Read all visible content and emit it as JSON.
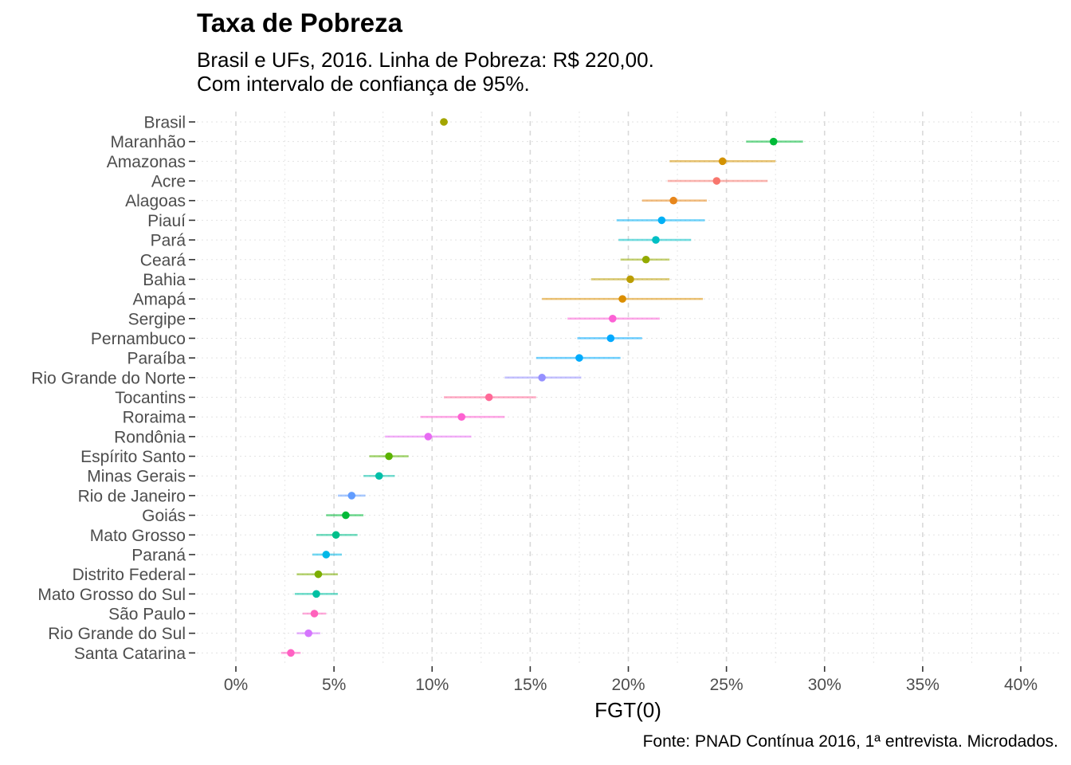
{
  "chart_data": {
    "type": "scatter",
    "title": "Taxa de Pobreza",
    "subtitle": [
      "Brasil e UFs, 2016. Linha de Pobreza: R$ 220,00.",
      "Com intervalo de confiança de 95%."
    ],
    "xlabel": "FGT(0)",
    "ylabel": "",
    "caption": "Fonte: PNAD Contínua 2016, 1ª entrevista. Microdados.",
    "xlim": [
      -0.02,
      0.42
    ],
    "x_ticks": [
      0,
      0.05,
      0.1,
      0.15,
      0.2,
      0.25,
      0.3,
      0.35,
      0.4
    ],
    "x_tick_labels": [
      "0%",
      "5%",
      "10%",
      "15%",
      "20%",
      "25%",
      "30%",
      "35%",
      "40%"
    ],
    "grid": true,
    "legend": "none",
    "points": [
      {
        "label": "Brasil",
        "value": 0.106,
        "low": 0.104,
        "high": 0.108,
        "color": "#a3a500"
      },
      {
        "label": "Maranhão",
        "value": 0.274,
        "low": 0.26,
        "high": 0.289,
        "color": "#00ba38"
      },
      {
        "label": "Amazonas",
        "value": 0.248,
        "low": 0.221,
        "high": 0.275,
        "color": "#d39200"
      },
      {
        "label": "Acre",
        "value": 0.245,
        "low": 0.22,
        "high": 0.271,
        "color": "#f8766d"
      },
      {
        "label": "Alagoas",
        "value": 0.223,
        "low": 0.207,
        "high": 0.24,
        "color": "#e7861b"
      },
      {
        "label": "Piauí",
        "value": 0.217,
        "low": 0.194,
        "high": 0.239,
        "color": "#00b0f6"
      },
      {
        "label": "Pará",
        "value": 0.214,
        "low": 0.195,
        "high": 0.232,
        "color": "#00bfc4"
      },
      {
        "label": "Ceará",
        "value": 0.209,
        "low": 0.196,
        "high": 0.221,
        "color": "#93aa00"
      },
      {
        "label": "Bahia",
        "value": 0.201,
        "low": 0.181,
        "high": 0.221,
        "color": "#bb9d00"
      },
      {
        "label": "Amapá",
        "value": 0.197,
        "low": 0.156,
        "high": 0.238,
        "color": "#db8e00"
      },
      {
        "label": "Sergipe",
        "value": 0.192,
        "low": 0.169,
        "high": 0.216,
        "color": "#fc61d5"
      },
      {
        "label": "Pernambuco",
        "value": 0.191,
        "low": 0.174,
        "high": 0.207,
        "color": "#00a9ff"
      },
      {
        "label": "Paraíba",
        "value": 0.175,
        "low": 0.153,
        "high": 0.196,
        "color": "#00abfd"
      },
      {
        "label": "Rio Grande do Norte",
        "value": 0.156,
        "low": 0.137,
        "high": 0.176,
        "color": "#9590ff"
      },
      {
        "label": "Tocantins",
        "value": 0.129,
        "low": 0.106,
        "high": 0.153,
        "color": "#ff6a98"
      },
      {
        "label": "Roraima",
        "value": 0.115,
        "low": 0.094,
        "high": 0.137,
        "color": "#fd61d1"
      },
      {
        "label": "Rondônia",
        "value": 0.098,
        "low": 0.076,
        "high": 0.12,
        "color": "#e76bf3"
      },
      {
        "label": "Espírito Santo",
        "value": 0.078,
        "low": 0.068,
        "high": 0.088,
        "color": "#5bb300"
      },
      {
        "label": "Minas Gerais",
        "value": 0.073,
        "low": 0.065,
        "high": 0.081,
        "color": "#00bfa8"
      },
      {
        "label": "Rio de Janeiro",
        "value": 0.059,
        "low": 0.052,
        "high": 0.066,
        "color": "#619cff"
      },
      {
        "label": "Goiás",
        "value": 0.056,
        "low": 0.046,
        "high": 0.065,
        "color": "#00ba38"
      },
      {
        "label": "Mato Grosso",
        "value": 0.051,
        "low": 0.041,
        "high": 0.062,
        "color": "#00c08b"
      },
      {
        "label": "Paraná",
        "value": 0.046,
        "low": 0.039,
        "high": 0.054,
        "color": "#00b8e7"
      },
      {
        "label": "Distrito Federal",
        "value": 0.042,
        "low": 0.031,
        "high": 0.052,
        "color": "#7cae00"
      },
      {
        "label": "Mato Grosso do Sul",
        "value": 0.041,
        "low": 0.03,
        "high": 0.052,
        "color": "#00c1a3"
      },
      {
        "label": "São Paulo",
        "value": 0.04,
        "low": 0.034,
        "high": 0.046,
        "color": "#ff62bc"
      },
      {
        "label": "Rio Grande do Sul",
        "value": 0.037,
        "low": 0.031,
        "high": 0.043,
        "color": "#d575fe"
      },
      {
        "label": "Santa Catarina",
        "value": 0.028,
        "low": 0.023,
        "high": 0.033,
        "color": "#ff61c3"
      }
    ]
  }
}
